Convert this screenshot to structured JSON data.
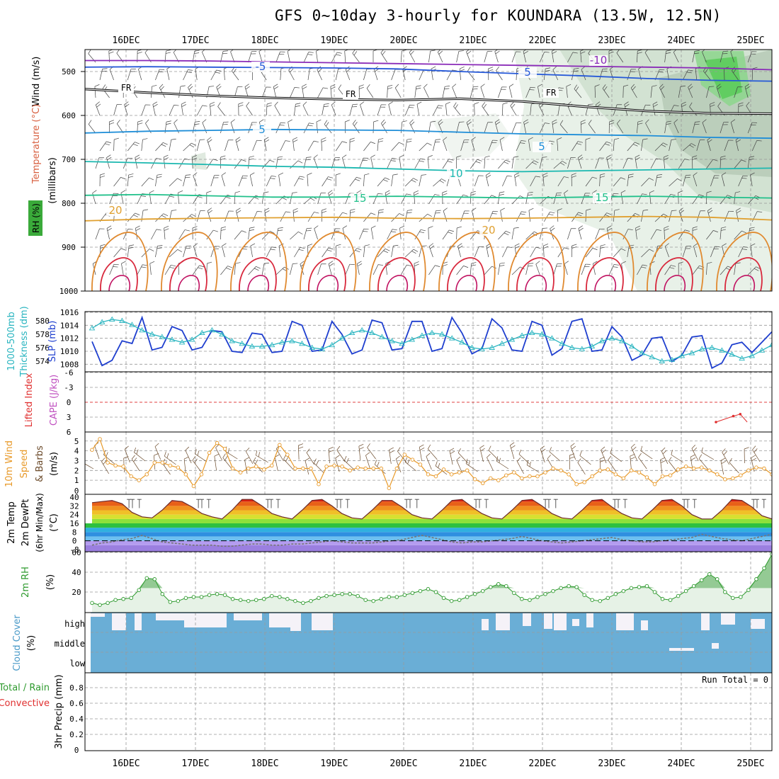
{
  "title": "GFS 0~10day 3-hourly for KOUNDARA (13.5W, 12.5N)",
  "dates": [
    "16DEC",
    "17DEC",
    "18DEC",
    "19DEC",
    "20DEC",
    "21DEC",
    "22DEC",
    "23DEC",
    "24DEC",
    "25DEC"
  ],
  "colors": {
    "grid": "#999999",
    "cloud": "#6aaed6",
    "clear": "#f5f2f8",
    "slp": "#1f3fcf",
    "thick": "#2ab5c0",
    "wind": "#e89a2a",
    "rh": "#2e9a2e",
    "li": "#e03030",
    "cape": "#c050c0"
  },
  "chart_data": [
    {
      "type": "contour",
      "name": "upper-air",
      "ylabel_parts": [
        "Wind (m/s)",
        "Temperature (°C)",
        "RH (%)"
      ],
      "yunit": "(millibars)",
      "ylim": [
        1000,
        450
      ],
      "yticks": [
        500,
        600,
        700,
        800,
        900,
        1000
      ],
      "freezing_label": "FR",
      "contour_labels": [
        "-10",
        "-5",
        "5",
        "5",
        "5",
        "10",
        "15",
        "15",
        "20",
        "20"
      ],
      "isotherms": [
        {
          "label": "-10",
          "p": [
            475,
            475,
            476,
            478,
            480,
            482,
            484,
            486,
            488,
            490,
            492,
            496
          ]
        },
        {
          "label": "-5",
          "p": [
            490,
            489,
            490,
            491,
            492,
            494,
            500,
            505,
            510,
            516,
            520,
            522
          ]
        },
        {
          "label": "5",
          "p": [
            640,
            636,
            634,
            632,
            633,
            634,
            638,
            642,
            644,
            646,
            650,
            652
          ]
        },
        {
          "label": "10",
          "p": [
            705,
            708,
            712,
            716,
            718,
            722,
            726,
            728,
            726,
            724,
            722,
            720
          ]
        },
        {
          "label": "15",
          "p": [
            782,
            780,
            783,
            786,
            786,
            784,
            786,
            788,
            786,
            784,
            786,
            788
          ]
        },
        {
          "label": "20",
          "p": [
            840,
            836,
            834,
            833,
            832,
            834,
            835,
            834,
            832,
            830,
            832,
            838
          ]
        }
      ],
      "freezing_level": [
        540,
        548,
        555,
        560,
        563,
        565,
        562,
        568,
        580,
        590,
        595,
        596
      ]
    },
    {
      "type": "line",
      "name": "slp-thickness",
      "ylabel_left": "1000-500mb Thickness (dm)",
      "ylabel_right": "SLP (mb)",
      "left_ticks": [
        580,
        578,
        576,
        574
      ],
      "right_ticks": [
        1016,
        1014,
        1012,
        1010,
        1008
      ],
      "series": [
        {
          "name": "SLP (mb)",
          "values": [
            1011.5,
            1007.8,
            1008.6,
            1011.6,
            1011.2,
            1015.2,
            1010.2,
            1010.6,
            1013.8,
            1013.2,
            1010.2,
            1010.6,
            1013.2,
            1013.0,
            1010.0,
            1009.8,
            1012.8,
            1012.6,
            1009.8,
            1010.0,
            1014.6,
            1014.0,
            1010.0,
            1010.2,
            1014.6,
            1012.6,
            1009.6,
            1010.2,
            1014.8,
            1014.4,
            1010.2,
            1010.4,
            1014.6,
            1014.6,
            1010.0,
            1010.4,
            1015.2,
            1012.8,
            1009.6,
            1010.4,
            1015.0,
            1013.6,
            1010.2,
            1010.0,
            1014.6,
            1014.0,
            1009.4,
            1010.4,
            1014.6,
            1015.0,
            1010.0,
            1010.2,
            1013.8,
            1012.2,
            1008.6,
            1009.4,
            1012.0,
            1012.2,
            1008.4,
            1009.4,
            1012.2,
            1012.4,
            1007.4,
            1008.2,
            1011.0,
            1011.4,
            1009.8,
            1011.4,
            1013.0
          ]
        },
        {
          "name": "1000-500mb Thickness (dm)",
          "values": [
            578.9,
            579.8,
            580.2,
            580.0,
            579.4,
            578.6,
            578.0,
            577.6,
            577.2,
            576.8,
            577.2,
            578.2,
            578.6,
            578.0,
            577.0,
            576.6,
            576.2,
            576.2,
            576.4,
            576.8,
            577.0,
            576.6,
            576.0,
            575.8,
            576.4,
            577.4,
            578.2,
            578.6,
            578.2,
            577.6,
            577.0,
            576.6,
            577.2,
            577.8,
            578.2,
            578.0,
            577.4,
            576.8,
            576.0,
            575.8,
            576.0,
            576.6,
            577.2,
            577.8,
            578.2,
            578.0,
            577.4,
            576.6,
            576.0,
            575.8,
            576.2,
            577.0,
            577.4,
            577.0,
            576.2,
            575.2,
            574.6,
            574.0,
            574.2,
            574.8,
            575.2,
            575.8,
            576.0,
            575.6,
            575.0,
            574.4,
            574.8,
            575.6,
            576.4
          ]
        }
      ]
    },
    {
      "type": "line",
      "name": "lifted-index-cape",
      "ylabel": [
        "Lifted Index",
        "CAPE (J/kg)"
      ],
      "yticks": [
        "-6",
        "-3",
        "0",
        "3",
        "6"
      ],
      "series": [
        {
          "name": "Lifted Index",
          "points": [
            [
              8.5,
              4.0
            ],
            [
              8.75,
              2.8
            ],
            [
              8.85,
              2.4
            ],
            [
              8.95,
              4.0
            ]
          ]
        }
      ]
    },
    {
      "type": "line",
      "name": "10m-wind",
      "ylabel": [
        "10m Wind",
        "Speed",
        "& Barbs"
      ],
      "yunit": "(m/s)",
      "yticks": [
        "1",
        "2",
        "3",
        "4",
        "5"
      ],
      "ylim": [
        0,
        5.7
      ],
      "series": [
        {
          "name": "10m Wind Speed (m/s)",
          "values": [
            4.1,
            5.2,
            2.8,
            2.5,
            2.4,
            1.4,
            1.0,
            1.6,
            2.8,
            2.8,
            2.5,
            2.3,
            1.6,
            0.4,
            1.6,
            3.8,
            4.8,
            4.2,
            2.2,
            1.8,
            2.2,
            2.4,
            2.1,
            2.5,
            4.6,
            3.6,
            2.2,
            2.2,
            2.2,
            0.6,
            2.4,
            2.5,
            2.4,
            2.0,
            2.3,
            2.2,
            2.2,
            2.2,
            0.2,
            2.2,
            3.6,
            3.1,
            2.6,
            1.6,
            1.4,
            2.1,
            1.6,
            1.8,
            2.0,
            1.1,
            0.7,
            1.2,
            1.0,
            1.5,
            1.8,
            1.2,
            1.4,
            1.4,
            1.8,
            2.2,
            2.0,
            1.6,
            0.6,
            0.8,
            1.4,
            2.0,
            2.1,
            1.6,
            1.2,
            2.0,
            1.8,
            1.3,
            0.6,
            1.4,
            1.5,
            2.1,
            2.4,
            2.2,
            2.3,
            2.0,
            1.6,
            1.1,
            1.2,
            1.5,
            2.0,
            2.3,
            2.2,
            1.6
          ]
        }
      ]
    },
    {
      "type": "area",
      "name": "2m-temp",
      "ylabel": [
        "2m Temp",
        "2m DewPt",
        "(6hr Min/Max)"
      ],
      "yunit": "(°C)",
      "yticks": [
        "40",
        "32",
        "24",
        "16",
        "8",
        "0",
        "-8"
      ],
      "ylim": [
        -10,
        42
      ],
      "series": [
        {
          "name": "2m Temp (°C)",
          "values": [
            35,
            36,
            37,
            34,
            26,
            22,
            21,
            28,
            37,
            36,
            31,
            25,
            22,
            20,
            28,
            38,
            38,
            32,
            25,
            22,
            20,
            28,
            37,
            38,
            32,
            25,
            21,
            20,
            28,
            37,
            37,
            31,
            24,
            21,
            20,
            28,
            37,
            38,
            31,
            25,
            21,
            20,
            28,
            37,
            38,
            32,
            25,
            21,
            20,
            28,
            37,
            38,
            31,
            25,
            21,
            20,
            28,
            37,
            38,
            32,
            24,
            20,
            20,
            28,
            38,
            37,
            31,
            23,
            20
          ]
        },
        {
          "name": "2m DewPt (°C)",
          "values": [
            -4,
            -2,
            -1,
            1,
            2,
            5,
            2,
            -1,
            -2,
            -3,
            -4,
            -4,
            -4,
            -5,
            -5,
            -4,
            -3,
            -3,
            -4,
            -4,
            -3,
            -3,
            -2,
            -1,
            0,
            -1,
            -2,
            -2,
            -2,
            -1,
            0,
            1,
            3,
            5,
            3,
            1,
            -1,
            -2,
            -1,
            -1,
            0,
            1,
            2,
            4,
            2,
            0,
            -1,
            -2,
            -1,
            0,
            1,
            2,
            3,
            1,
            0,
            -1,
            -1,
            0,
            1,
            2,
            3,
            6,
            4,
            2,
            1,
            0,
            2,
            4,
            6
          ]
        }
      ]
    },
    {
      "type": "area",
      "name": "2m-rh",
      "ylabel": "2m RH",
      "yunit": "(%)",
      "yticks": [
        "20",
        "40",
        "60"
      ],
      "ylim": [
        0,
        60
      ],
      "series": [
        {
          "name": "2m RH (%)",
          "values": [
            9,
            7,
            9,
            12,
            13,
            14,
            22,
            34,
            33,
            18,
            10,
            11,
            14,
            15,
            15,
            17,
            18,
            17,
            13,
            12,
            11,
            12,
            13,
            16,
            15,
            13,
            11,
            9,
            11,
            14,
            16,
            17,
            18,
            18,
            16,
            12,
            11,
            13,
            15,
            15,
            17,
            19,
            21,
            23,
            20,
            14,
            11,
            12,
            15,
            18,
            21,
            25,
            28,
            26,
            19,
            13,
            12,
            15,
            18,
            21,
            24,
            26,
            25,
            17,
            12,
            11,
            14,
            18,
            21,
            24,
            25,
            26,
            20,
            13,
            12,
            16,
            21,
            26,
            32,
            38,
            33,
            20,
            14,
            15,
            22,
            33,
            44,
            58
          ]
        }
      ]
    },
    {
      "type": "heatmap",
      "name": "cloud-cover",
      "ylabel": [
        "Cloud Cover",
        "(%)"
      ],
      "rows": [
        "high",
        "middle",
        "low"
      ]
    },
    {
      "type": "bar",
      "name": "3hr-precip",
      "ylabel": [
        "Total / Rain",
        "Convective",
        "3hr Precip (mm)"
      ],
      "yticks": [
        "0",
        "0.2",
        "0.4",
        "0.6",
        "0.8"
      ],
      "ylim": [
        0,
        0.96
      ],
      "values": [],
      "annotation": "Run Total = 0"
    }
  ]
}
